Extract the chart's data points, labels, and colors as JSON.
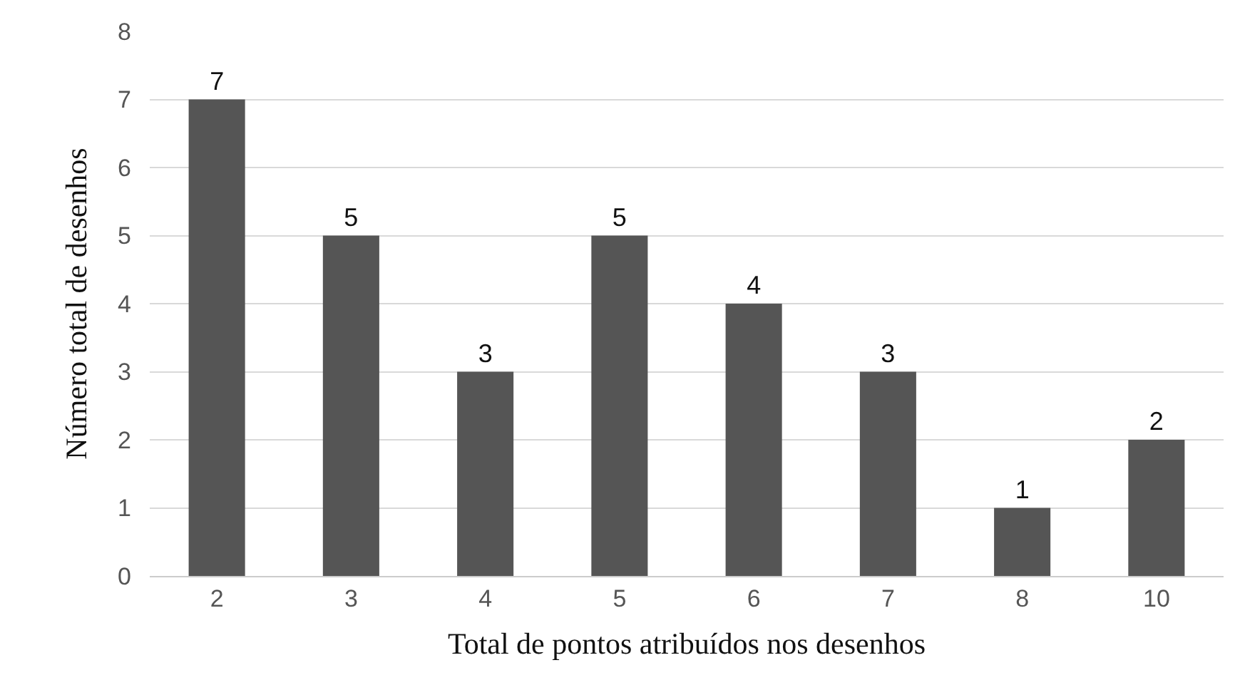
{
  "chart_data": {
    "type": "bar",
    "xlabel": "Total de pontos atribuídos nos desenhos",
    "ylabel": "Número total de desenhos",
    "categories": [
      "2",
      "3",
      "4",
      "5",
      "6",
      "7",
      "8",
      "10"
    ],
    "values": [
      7,
      5,
      3,
      5,
      4,
      3,
      1,
      2
    ],
    "color": "#555555",
    "ylim": [
      0,
      8
    ],
    "yticks": [
      0,
      1,
      2,
      3,
      4,
      5,
      6,
      7,
      8
    ],
    "grid": "y",
    "data_labels": true
  }
}
